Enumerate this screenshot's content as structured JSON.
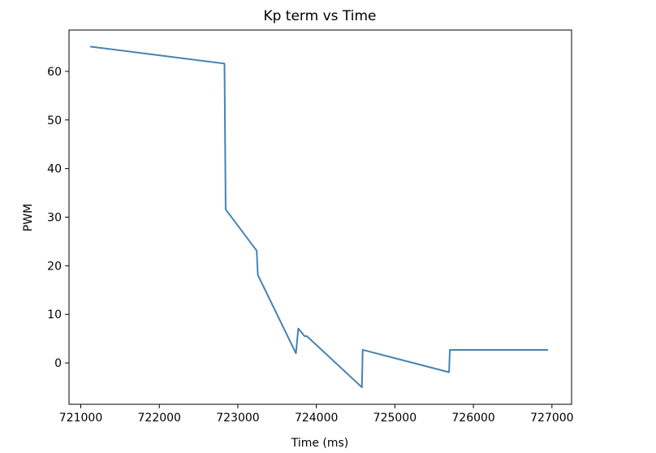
{
  "chart_data": {
    "type": "line",
    "title": "Kp term vs Time",
    "xlabel": "Time (ms)",
    "ylabel": "PWM",
    "xlim": [
      720850,
      727250
    ],
    "ylim": [
      -8.5,
      68.5
    ],
    "xticks": [
      721000,
      722000,
      723000,
      724000,
      725000,
      726000,
      727000
    ],
    "yticks": [
      0,
      10,
      20,
      30,
      40,
      50,
      60
    ],
    "grid": false,
    "line_color": "#4682b4",
    "series": [
      {
        "x": [
          721120,
          722830,
          722845,
          723240,
          723255,
          723740,
          723770,
          723850,
          723880,
          724580,
          724590,
          725690,
          725700,
          726950
        ],
        "y": [
          65.1,
          61.6,
          31.6,
          23.1,
          18.1,
          2.0,
          7.1,
          5.5,
          5.5,
          -5.0,
          2.7,
          -1.9,
          2.7,
          2.7
        ]
      }
    ]
  }
}
